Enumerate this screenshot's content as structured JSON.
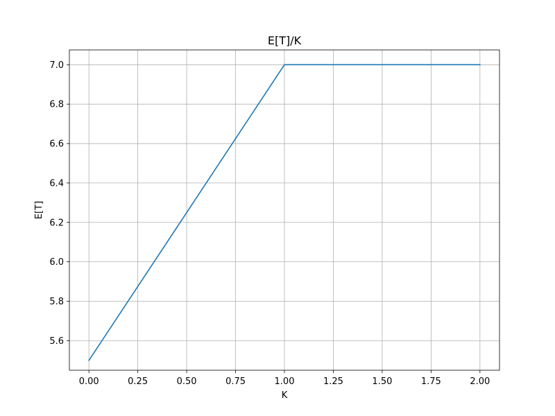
{
  "chart_data": {
    "type": "line",
    "title": "E[T]/K",
    "xlabel": "K",
    "ylabel": "E[T]",
    "xlim": [
      -0.1,
      2.1
    ],
    "ylim": [
      5.45,
      7.075
    ],
    "x_ticks": [
      0.0,
      0.25,
      0.5,
      0.75,
      1.0,
      1.25,
      1.5,
      1.75,
      2.0
    ],
    "x_tick_labels": [
      "0.00",
      "0.25",
      "0.50",
      "0.75",
      "1.00",
      "1.25",
      "1.50",
      "1.75",
      "2.00"
    ],
    "y_ticks": [
      5.6,
      5.8,
      6.0,
      6.2,
      6.4,
      6.6,
      6.8,
      7.0
    ],
    "y_tick_labels": [
      "5.6",
      "5.8",
      "6.0",
      "6.2",
      "6.4",
      "6.6",
      "6.8",
      "7.0"
    ],
    "grid": true,
    "series": [
      {
        "color": "#1f77b4",
        "x": [
          0.0,
          1.0,
          2.0
        ],
        "y": [
          5.5,
          7.0,
          7.0
        ]
      }
    ]
  }
}
